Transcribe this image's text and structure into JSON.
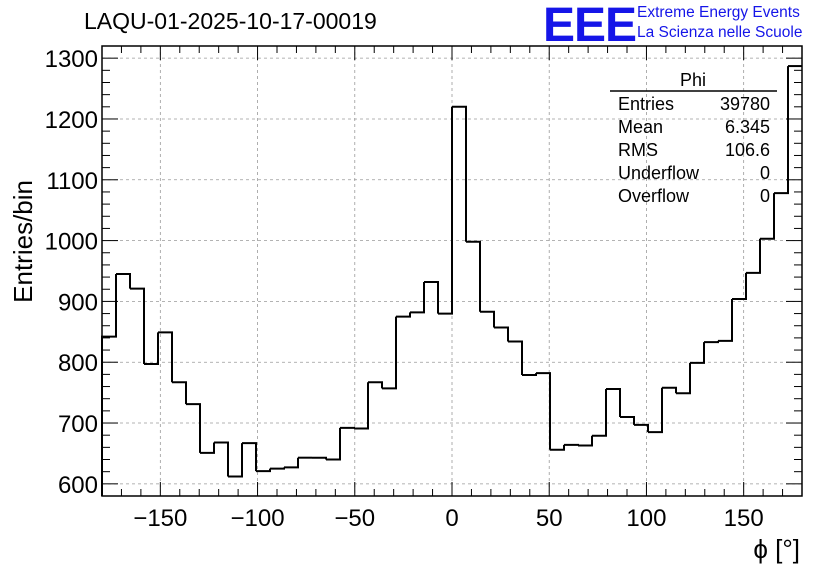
{
  "header": {
    "title": "LAQU-01-2025-10-17-00019",
    "logo_text": "EEE",
    "logo_line1": "Extreme Energy Events",
    "logo_line2": "La Scienza nelle Scuole"
  },
  "colors": {
    "logo": "#1515e8",
    "line": "#000000",
    "grid": "#9a9a9a"
  },
  "stats": {
    "name": "Phi",
    "rows": [
      {
        "label": "Entries",
        "value": "39780"
      },
      {
        "label": "Mean",
        "value": "6.345"
      },
      {
        "label": "RMS",
        "value": "106.6"
      },
      {
        "label": "Underflow",
        "value": "0"
      },
      {
        "label": "Overflow",
        "value": "0"
      }
    ]
  },
  "chart_data": {
    "type": "histogram",
    "title": "LAQU-01-2025-10-17-00019",
    "xlabel": "ϕ [°]",
    "ylabel": "Entries/bin",
    "xlim": [
      -180,
      180
    ],
    "ylim": [
      580,
      1320
    ],
    "bin_width": 7.2,
    "grid": true,
    "xticks": [
      -150,
      -100,
      -50,
      0,
      50,
      100,
      150
    ],
    "yticks": [
      600,
      700,
      800,
      900,
      1000,
      1100,
      1200,
      1300
    ],
    "values": [
      842,
      945,
      921,
      797,
      849,
      767,
      731,
      651,
      668,
      612,
      667,
      621,
      625,
      627,
      643,
      643,
      640,
      692,
      691,
      767,
      757,
      875,
      882,
      932,
      880,
      1220,
      998,
      883,
      857,
      834,
      779,
      782,
      656,
      664,
      663,
      679,
      756,
      710,
      697,
      685,
      758,
      749,
      799,
      833,
      835,
      904,
      947,
      1003,
      1078,
      1287
    ]
  }
}
